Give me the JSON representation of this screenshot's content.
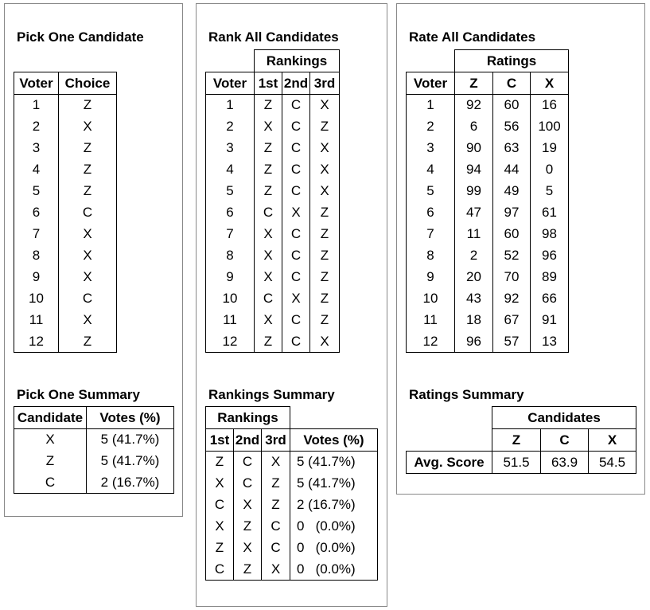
{
  "pick": {
    "title": "Pick One Candidate",
    "headers": [
      "Voter",
      "Choice"
    ],
    "rows": [
      [
        "1",
        "Z"
      ],
      [
        "2",
        "X"
      ],
      [
        "3",
        "Z"
      ],
      [
        "4",
        "Z"
      ],
      [
        "5",
        "Z"
      ],
      [
        "6",
        "C"
      ],
      [
        "7",
        "X"
      ],
      [
        "8",
        "X"
      ],
      [
        "9",
        "X"
      ],
      [
        "10",
        "C"
      ],
      [
        "11",
        "X"
      ],
      [
        "12",
        "Z"
      ]
    ],
    "summary_title": "Pick One Summary",
    "summary_headers": [
      "Candidate",
      "Votes (%)"
    ],
    "summary_rows": [
      [
        "X",
        "5 (41.7%)"
      ],
      [
        "Z",
        "5 (41.7%)"
      ],
      [
        "C",
        "2 (16.7%)"
      ]
    ]
  },
  "rank": {
    "title": "Rank All Candidates",
    "group_header": "Rankings",
    "headers": [
      "Voter",
      "1st",
      "2nd",
      "3rd"
    ],
    "rows": [
      [
        "1",
        "Z",
        "C",
        "X"
      ],
      [
        "2",
        "X",
        "C",
        "Z"
      ],
      [
        "3",
        "Z",
        "C",
        "X"
      ],
      [
        "4",
        "Z",
        "C",
        "X"
      ],
      [
        "5",
        "Z",
        "C",
        "X"
      ],
      [
        "6",
        "C",
        "X",
        "Z"
      ],
      [
        "7",
        "X",
        "C",
        "Z"
      ],
      [
        "8",
        "X",
        "C",
        "Z"
      ],
      [
        "9",
        "X",
        "C",
        "Z"
      ],
      [
        "10",
        "C",
        "X",
        "Z"
      ],
      [
        "11",
        "X",
        "C",
        "Z"
      ],
      [
        "12",
        "Z",
        "C",
        "X"
      ]
    ],
    "summary_title": "Rankings Summary",
    "summary_group_header": "Rankings",
    "summary_headers": [
      "1st",
      "2nd",
      "3rd",
      "Votes (%)"
    ],
    "summary_rows": [
      [
        "Z",
        "C",
        "X",
        "5 (41.7%)"
      ],
      [
        "X",
        "C",
        "Z",
        "5 (41.7%)"
      ],
      [
        "C",
        "X",
        "Z",
        "2 (16.7%)"
      ],
      [
        "X",
        "Z",
        "C",
        "0   (0.0%)"
      ],
      [
        "Z",
        "X",
        "C",
        "0   (0.0%)"
      ],
      [
        "C",
        "Z",
        "X",
        "0   (0.0%)"
      ]
    ]
  },
  "rate": {
    "title": "Rate All Candidates",
    "group_header": "Ratings",
    "headers": [
      "Voter",
      "Z",
      "C",
      "X"
    ],
    "rows": [
      [
        "1",
        "92",
        "60",
        "16"
      ],
      [
        "2",
        "6",
        "56",
        "100"
      ],
      [
        "3",
        "90",
        "63",
        "19"
      ],
      [
        "4",
        "94",
        "44",
        "0"
      ],
      [
        "5",
        "99",
        "49",
        "5"
      ],
      [
        "6",
        "47",
        "97",
        "61"
      ],
      [
        "7",
        "11",
        "60",
        "98"
      ],
      [
        "8",
        "2",
        "52",
        "96"
      ],
      [
        "9",
        "20",
        "70",
        "89"
      ],
      [
        "10",
        "43",
        "92",
        "66"
      ],
      [
        "11",
        "18",
        "67",
        "91"
      ],
      [
        "12",
        "96",
        "57",
        "13"
      ]
    ],
    "summary_title": "Ratings Summary",
    "summary_group_header": "Candidates",
    "summary_headers": [
      "Z",
      "C",
      "X"
    ],
    "summary_row_label": "Avg. Score",
    "summary_values": [
      "51.5",
      "63.9",
      "54.5"
    ]
  }
}
